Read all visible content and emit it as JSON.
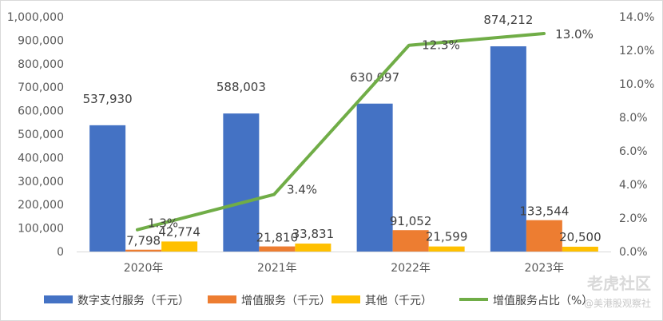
{
  "chart_data": {
    "type": "bar",
    "categories": [
      "2020年",
      "2021年",
      "2022年",
      "2023年"
    ],
    "series": [
      {
        "name": "数字支付服务（千元）",
        "type": "bar",
        "color": "#4472C4",
        "values": [
          537930,
          588003,
          630097,
          874212
        ],
        "labels": [
          "537,930",
          "588,003",
          "630,097",
          "874,212"
        ]
      },
      {
        "name": "增值服务（千元）",
        "type": "bar",
        "color": "#ED7D31",
        "values": [
          7798,
          21810,
          91052,
          133544
        ],
        "labels": [
          "7,798",
          "21,810",
          "91,052",
          "133,544"
        ]
      },
      {
        "name": "其他（千元）",
        "type": "bar",
        "color": "#FFC000",
        "values": [
          42774,
          33831,
          21599,
          20500
        ],
        "labels": [
          "42,774",
          "33,831",
          "21,599",
          "20,500"
        ]
      },
      {
        "name": "增值服务占比（%）",
        "type": "line",
        "axis": "right",
        "color": "#70AD47",
        "values": [
          1.3,
          3.4,
          12.3,
          13.0
        ],
        "labels": [
          "1.3%",
          "3.4%",
          "12.3%",
          "13.0%"
        ]
      }
    ],
    "y_left": {
      "min": 0,
      "max": 1000000,
      "ticks": [
        "0",
        "100,000",
        "200,000",
        "300,000",
        "400,000",
        "500,000",
        "600,000",
        "700,000",
        "800,000",
        "900,000",
        "1,000,000"
      ]
    },
    "y_right": {
      "min": 0,
      "max": 14,
      "ticks": [
        "0.0%",
        "2.0%",
        "4.0%",
        "6.0%",
        "8.0%",
        "10.0%",
        "12.0%",
        "14.0%"
      ]
    },
    "grid": false,
    "legend": "bottom"
  },
  "watermark": {
    "brand": "老虎社区",
    "handle": "@美港股观察社"
  }
}
